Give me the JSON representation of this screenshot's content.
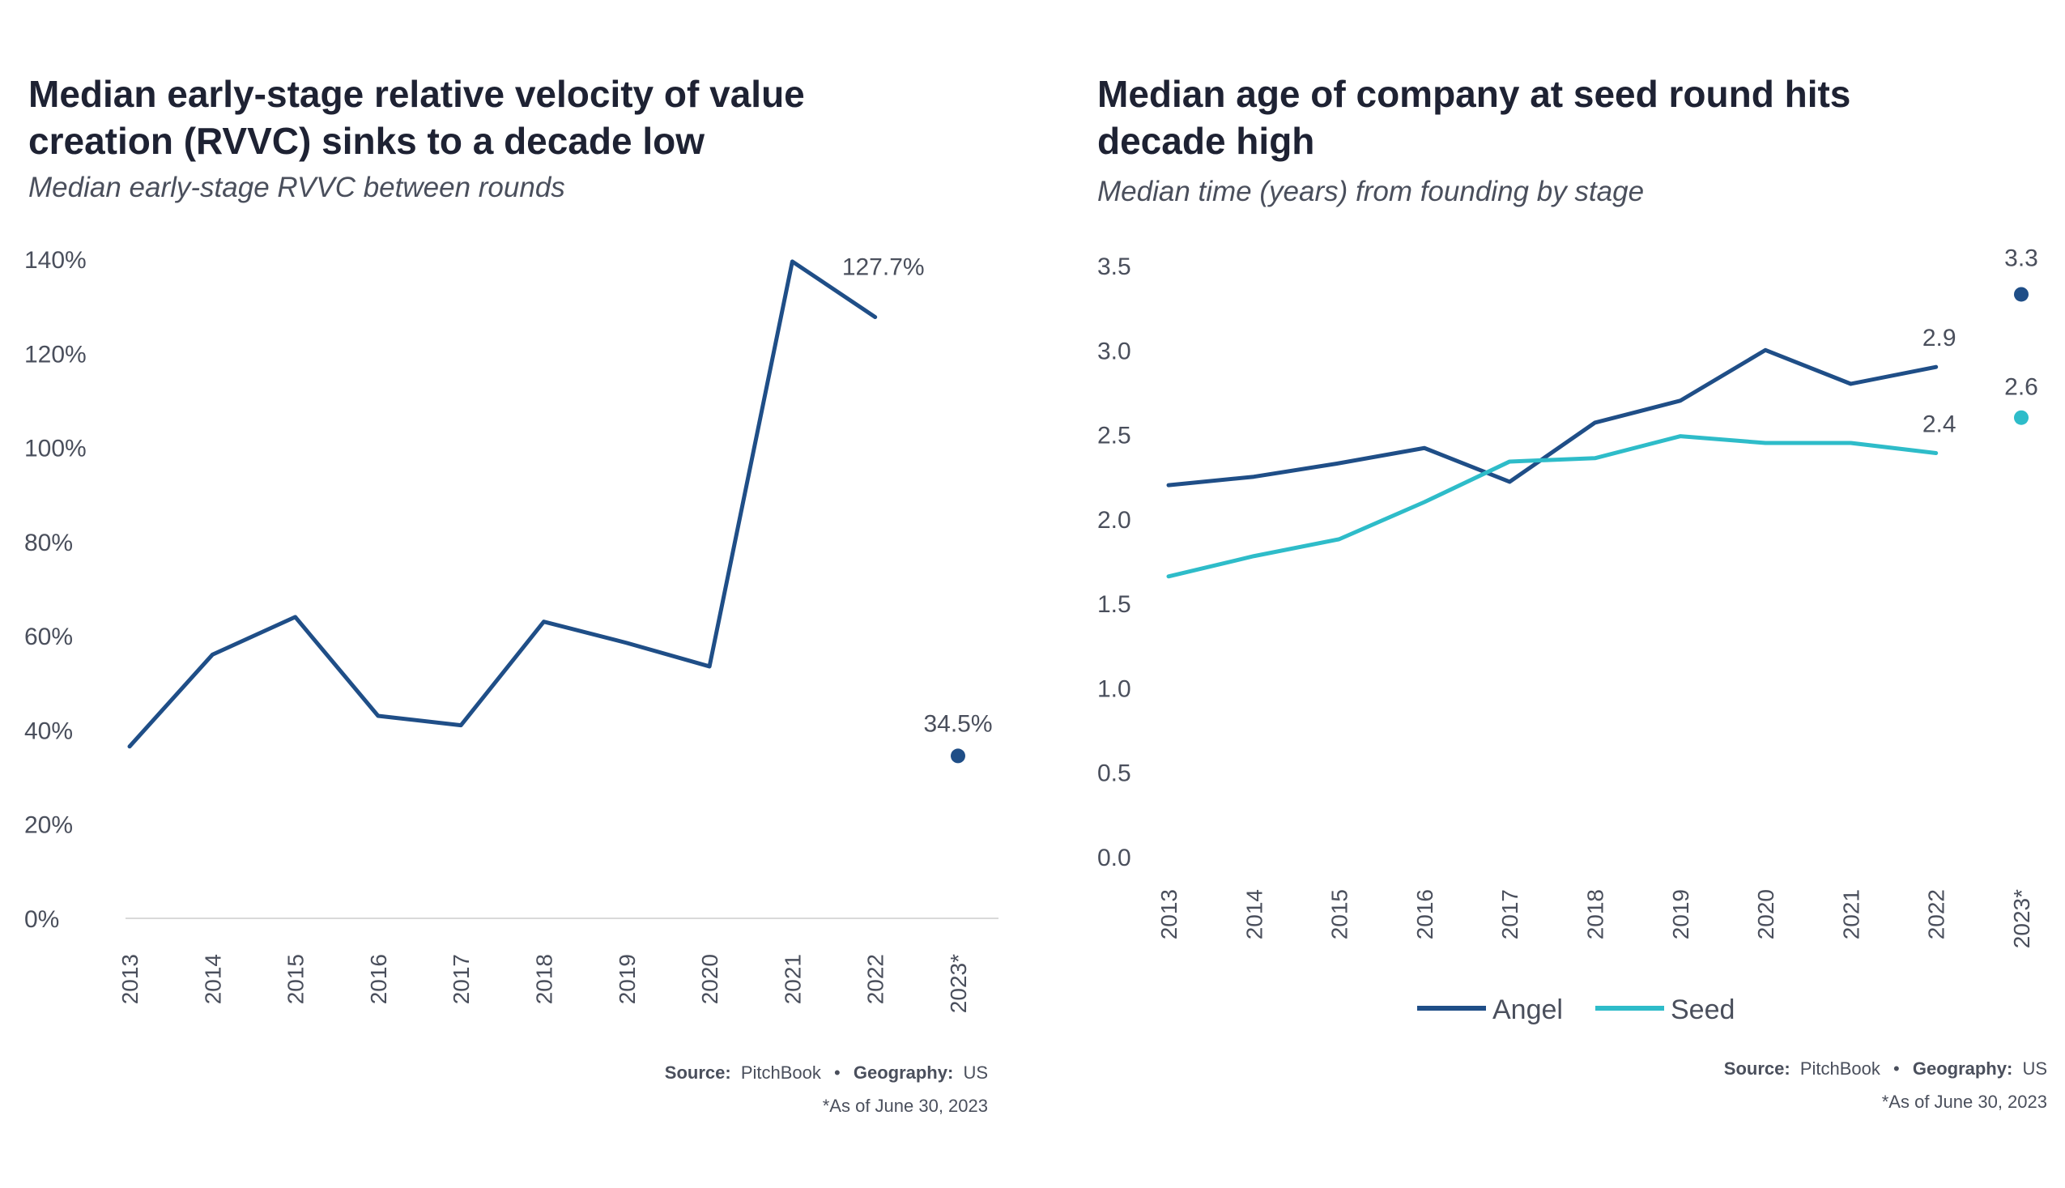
{
  "colors": {
    "background": "#ffffff",
    "title": "#1e2233",
    "subtitle": "#4a4f5c",
    "axis_text": "#4a4f5c",
    "baseline": "#d9d9d9",
    "angel": "#1f4e87",
    "seed": "#2ebcc9"
  },
  "chart_data": [
    {
      "type": "line",
      "title": "Median early-stage relative velocity of value creation (RVVC) sinks to a decade low",
      "title_lines": [
        "Median early-stage relative velocity of value",
        "creation (RVVC) sinks to a decade low"
      ],
      "subtitle": "Median early-stage RVVC between rounds",
      "xlabel": "",
      "ylabel": "",
      "categories": [
        "2013",
        "2014",
        "2015",
        "2016",
        "2017",
        "2018",
        "2019",
        "2020",
        "2021",
        "2022",
        "2023*"
      ],
      "y_ticks": [
        0,
        20,
        40,
        60,
        80,
        100,
        120,
        140
      ],
      "y_tick_labels": [
        "0%",
        "20%",
        "40%",
        "60%",
        "80%",
        "100%",
        "120%",
        "140%"
      ],
      "ylim": [
        0,
        140
      ],
      "grid": false,
      "series": [
        {
          "color": "#1f4e87",
          "values": [
            36.5,
            56,
            64,
            43,
            41,
            63,
            58.5,
            53.5,
            139.5,
            127.7,
            null
          ],
          "highlight": {
            "index": 10,
            "value": 34.5
          }
        }
      ],
      "data_labels": [
        {
          "index": 9,
          "value": 127.7,
          "text": "127.7%"
        },
        {
          "index": 10,
          "value": 34.5,
          "text": "34.5%"
        }
      ],
      "source_label": "Source:",
      "source_value": "PitchBook",
      "geo_label": "Geography:",
      "geo_value": "US",
      "note": "*As of June 30, 2023"
    },
    {
      "type": "line",
      "title": "Median age of company at seed round hits decade high",
      "title_lines": [
        "Median age of company at seed round hits",
        "decade high"
      ],
      "subtitle": "Median time (years) from founding by stage",
      "xlabel": "",
      "ylabel": "",
      "categories": [
        "2013",
        "2014",
        "2015",
        "2016",
        "2017",
        "2018",
        "2019",
        "2020",
        "2021",
        "2022",
        "2023*"
      ],
      "y_ticks": [
        0,
        0.5,
        1,
        1.5,
        2,
        2.5,
        3,
        3.5
      ],
      "y_tick_labels": [
        "0.0",
        "0.5",
        "1.0",
        "1.5",
        "2.0",
        "2.5",
        "3.0",
        "3.5"
      ],
      "ylim": [
        0,
        3.5
      ],
      "grid": false,
      "legend_position": "bottom",
      "series": [
        {
          "name": "Angel",
          "color": "#1f4e87",
          "values": [
            2.2,
            2.25,
            2.33,
            2.42,
            2.22,
            2.57,
            2.7,
            3.0,
            2.8,
            2.9,
            null
          ],
          "highlight": {
            "index": 10,
            "value": 3.33
          }
        },
        {
          "name": "Seed",
          "color": "#2ebcc9",
          "values": [
            1.66,
            1.78,
            1.88,
            2.1,
            2.34,
            2.36,
            2.49,
            2.45,
            2.45,
            2.39,
            null
          ],
          "highlight": {
            "index": 10,
            "value": 2.6
          }
        }
      ],
      "data_labels": [
        {
          "series": 0,
          "index": 9,
          "value": 2.9,
          "text": "2.9"
        },
        {
          "series": 1,
          "index": 9,
          "value": 2.39,
          "text": "2.4"
        },
        {
          "series": 0,
          "index": 10,
          "value": 3.33,
          "text": "3.3"
        },
        {
          "series": 1,
          "index": 10,
          "value": 2.6,
          "text": "2.6"
        }
      ],
      "source_label": "Source:",
      "source_value": "PitchBook",
      "geo_label": "Geography:",
      "geo_value": "US",
      "note": "*As of June 30, 2023"
    }
  ]
}
